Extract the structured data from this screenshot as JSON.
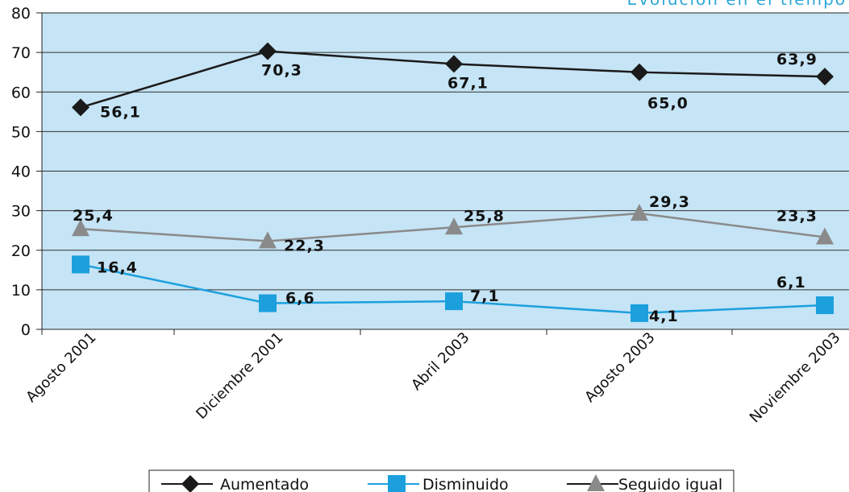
{
  "chart_data": {
    "type": "line",
    "title": "Evolución en el tiempo",
    "xlabel": "",
    "ylabel": "",
    "ylim": [
      0,
      80
    ],
    "yticks": [
      0,
      10,
      20,
      30,
      40,
      50,
      60,
      70,
      80
    ],
    "categories": [
      "Agosto 2001",
      "Diciembre 2001",
      "Abril 2003",
      "Agosto 2003",
      "Noviembre 2003"
    ],
    "grid": "horizontal",
    "plot_background": "#c5e4f5",
    "legend_position": "bottom",
    "series": [
      {
        "name": "Aumentado",
        "values": [
          56.1,
          70.3,
          67.1,
          65.0,
          63.9
        ],
        "labels": [
          "56,1",
          "70,3",
          "67,1",
          "65,0",
          "63,9"
        ],
        "color": "#1a1a1a",
        "marker": "diamond"
      },
      {
        "name": "Disminuido",
        "values": [
          16.4,
          6.6,
          7.1,
          4.1,
          6.1
        ],
        "labels": [
          "16,4",
          "6,6",
          "7,1",
          "4,1",
          "6,1"
        ],
        "color": "#1ba0dd",
        "marker": "square"
      },
      {
        "name": "Seguido igual",
        "values": [
          25.4,
          22.3,
          25.8,
          29.3,
          23.3
        ],
        "labels": [
          "25,4",
          "22,3",
          "25,8",
          "29,3",
          "23,3"
        ],
        "color": "#8a8a8a",
        "marker": "triangle"
      }
    ]
  }
}
